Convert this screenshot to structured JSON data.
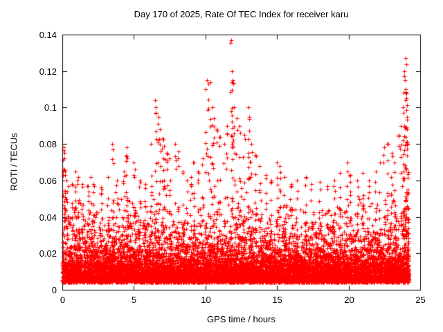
{
  "chart_data": {
    "type": "scatter",
    "title": "Day 170 of 2025, Rate Of TEC Index for receiver karu",
    "xlabel": "GPS time / hours",
    "ylabel": "ROTI / TECUs",
    "xlim": [
      0,
      25
    ],
    "ylim": [
      0,
      0.14
    ],
    "xticks": [
      "0",
      "5",
      "10",
      "15",
      "20",
      "25"
    ],
    "yticks": [
      "0",
      "0.02",
      "0.04",
      "0.06",
      "0.08",
      "0.1",
      "0.12",
      "0.14"
    ],
    "grid": false,
    "legend": "none",
    "marker": "plus",
    "marker_color": "#ff0000",
    "band": {
      "base": 0.004,
      "exp_scale": 0.0085,
      "segments": [
        [
          0,
          1,
          420,
          0.048
        ],
        [
          1,
          2,
          420,
          0.05
        ],
        [
          2,
          3,
          420,
          0.046
        ],
        [
          3,
          4,
          420,
          0.05
        ],
        [
          4,
          5,
          420,
          0.05
        ],
        [
          5,
          6,
          420,
          0.047
        ],
        [
          6,
          7,
          420,
          0.054
        ],
        [
          7,
          8,
          420,
          0.05
        ],
        [
          8,
          9,
          420,
          0.048
        ],
        [
          9,
          10,
          420,
          0.05
        ],
        [
          10,
          11,
          420,
          0.054
        ],
        [
          11,
          12,
          420,
          0.055
        ],
        [
          12,
          13,
          420,
          0.058
        ],
        [
          13,
          14,
          420,
          0.05
        ],
        [
          14,
          15,
          420,
          0.046
        ],
        [
          15,
          16,
          420,
          0.05
        ],
        [
          16,
          17,
          420,
          0.045
        ],
        [
          17,
          18,
          420,
          0.045
        ],
        [
          18,
          19,
          420,
          0.044
        ],
        [
          19,
          20,
          420,
          0.046
        ],
        [
          20,
          21,
          420,
          0.05
        ],
        [
          21,
          22,
          420,
          0.05
        ],
        [
          22,
          23,
          420,
          0.052
        ],
        [
          23,
          24,
          420,
          0.058
        ],
        [
          24,
          24.2,
          130,
          0.06
        ]
      ]
    },
    "spikes": [
      [
        0.1,
        0.078
      ],
      [
        0.15,
        0.072
      ],
      [
        0.2,
        0.065
      ],
      [
        0.3,
        0.06
      ],
      [
        0.45,
        0.057
      ],
      [
        0.7,
        0.058
      ],
      [
        0.9,
        0.065
      ],
      [
        1.1,
        0.062
      ],
      [
        1.4,
        0.058
      ],
      [
        1.8,
        0.057
      ],
      [
        2.0,
        0.062
      ],
      [
        2.2,
        0.058
      ],
      [
        2.7,
        0.056
      ],
      [
        3.2,
        0.062
      ],
      [
        3.5,
        0.08
      ],
      [
        3.55,
        0.077
      ],
      [
        3.8,
        0.06
      ],
      [
        4.3,
        0.065
      ],
      [
        4.5,
        0.078
      ],
      [
        4.55,
        0.072
      ],
      [
        5.0,
        0.07
      ],
      [
        5.1,
        0.066
      ],
      [
        5.4,
        0.06
      ],
      [
        5.8,
        0.058
      ],
      [
        6.2,
        0.08
      ],
      [
        6.5,
        0.104
      ],
      [
        6.55,
        0.1
      ],
      [
        6.7,
        0.095
      ],
      [
        6.8,
        0.088
      ],
      [
        7.0,
        0.083
      ],
      [
        7.1,
        0.079
      ],
      [
        7.3,
        0.075
      ],
      [
        7.5,
        0.072
      ],
      [
        7.9,
        0.08
      ],
      [
        8.1,
        0.076
      ],
      [
        8.4,
        0.065
      ],
      [
        8.7,
        0.06
      ],
      [
        9.0,
        0.062
      ],
      [
        9.2,
        0.07
      ],
      [
        9.5,
        0.065
      ],
      [
        9.8,
        0.072
      ],
      [
        10.0,
        0.11
      ],
      [
        10.1,
        0.115
      ],
      [
        10.2,
        0.113
      ],
      [
        10.35,
        0.114
      ],
      [
        10.5,
        0.1
      ],
      [
        10.6,
        0.094
      ],
      [
        10.8,
        0.088
      ],
      [
        11.0,
        0.084
      ],
      [
        11.3,
        0.08
      ],
      [
        11.5,
        0.09
      ],
      [
        11.8,
        0.137
      ],
      [
        11.85,
        0.12
      ],
      [
        11.9,
        0.115
      ],
      [
        12.0,
        0.1
      ],
      [
        12.2,
        0.094
      ],
      [
        12.4,
        0.09
      ],
      [
        12.7,
        0.085
      ],
      [
        13.0,
        0.1
      ],
      [
        13.05,
        0.095
      ],
      [
        13.2,
        0.08
      ],
      [
        13.5,
        0.074
      ],
      [
        13.8,
        0.068
      ],
      [
        14.2,
        0.063
      ],
      [
        14.6,
        0.06
      ],
      [
        15.0,
        0.07
      ],
      [
        15.2,
        0.068
      ],
      [
        15.5,
        0.062
      ],
      [
        16.0,
        0.058
      ],
      [
        16.4,
        0.06
      ],
      [
        17.0,
        0.062
      ],
      [
        17.4,
        0.058
      ],
      [
        18.0,
        0.059
      ],
      [
        18.5,
        0.057
      ],
      [
        19.0,
        0.06
      ],
      [
        19.4,
        0.064
      ],
      [
        19.9,
        0.07
      ],
      [
        20.1,
        0.063
      ],
      [
        20.6,
        0.06
      ],
      [
        21.0,
        0.064
      ],
      [
        21.4,
        0.06
      ],
      [
        21.9,
        0.065
      ],
      [
        22.2,
        0.07
      ],
      [
        22.5,
        0.078
      ],
      [
        22.7,
        0.08
      ],
      [
        23.0,
        0.075
      ],
      [
        23.2,
        0.07
      ],
      [
        23.5,
        0.085
      ],
      [
        23.65,
        0.09
      ],
      [
        23.8,
        0.1
      ],
      [
        23.85,
        0.108
      ],
      [
        23.9,
        0.12
      ],
      [
        23.95,
        0.115
      ],
      [
        24.0,
        0.127
      ],
      [
        24.0,
        0.11
      ],
      [
        24.05,
        0.105
      ],
      [
        24.1,
        0.095
      ],
      [
        24.1,
        0.088
      ],
      [
        24.15,
        0.08
      ]
    ]
  }
}
